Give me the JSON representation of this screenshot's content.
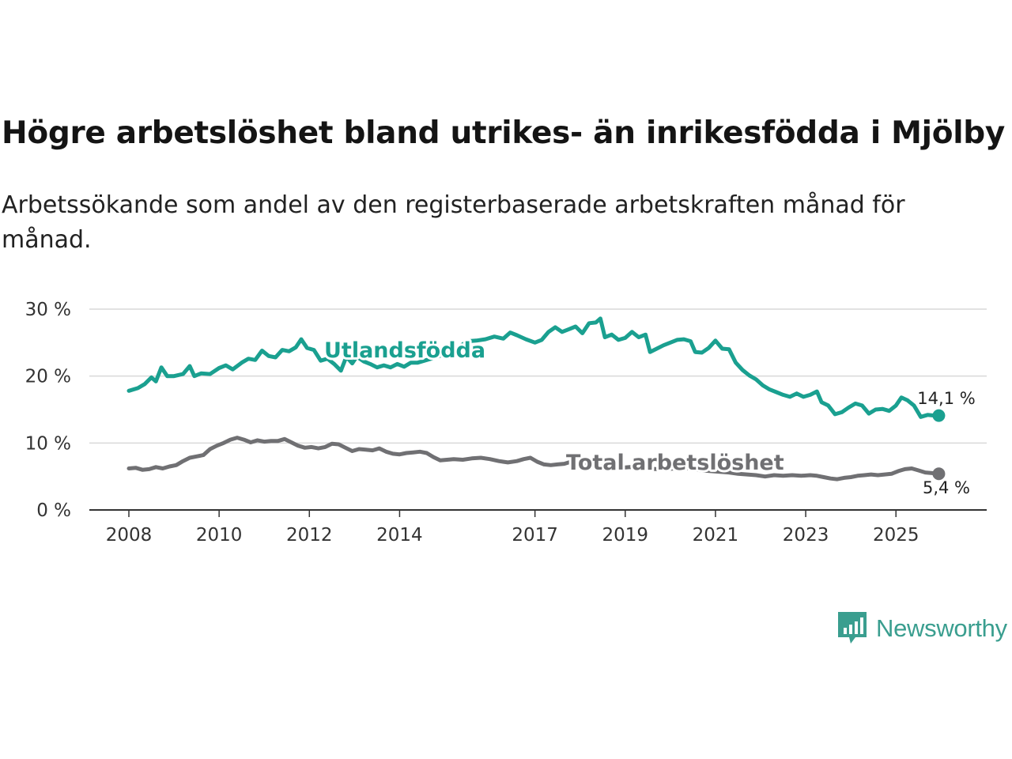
{
  "title": "Högre arbetslöshet bland utrikes- än inrikesfödda i Mjölby",
  "subtitle": "Arbetssökande som andel av den registerbaserade arbetskraften månad för månad.",
  "brand": {
    "name": "Newsworthy",
    "color": "#3a9e8f"
  },
  "chart_data": {
    "type": "line",
    "xlabel": "",
    "ylabel": "",
    "ylim": [
      0,
      30
    ],
    "xlim": [
      2008,
      2026.1
    ],
    "y_ticks": [
      {
        "value": 0,
        "label": "0 %"
      },
      {
        "value": 10,
        "label": "10 %"
      },
      {
        "value": 20,
        "label": "20 %"
      },
      {
        "value": 30,
        "label": "30 %"
      }
    ],
    "x_ticks": [
      {
        "value": 2008,
        "label": "2008"
      },
      {
        "value": 2010,
        "label": "2010"
      },
      {
        "value": 2012,
        "label": "2012"
      },
      {
        "value": 2014,
        "label": "2014"
      },
      {
        "value": 2017,
        "label": "2017"
      },
      {
        "value": 2019,
        "label": "2019"
      },
      {
        "value": 2021,
        "label": "2021"
      },
      {
        "value": 2023,
        "label": "2023"
      },
      {
        "value": 2025,
        "label": "2025"
      }
    ],
    "grid": true,
    "series": [
      {
        "name": "Utlandsfödda",
        "color": "#1aa090",
        "end_label": "14,1 %",
        "points": [
          [
            2008.0,
            17.8
          ],
          [
            2008.2,
            18.2
          ],
          [
            2008.35,
            18.8
          ],
          [
            2008.5,
            19.8
          ],
          [
            2008.6,
            19.2
          ],
          [
            2008.72,
            21.3
          ],
          [
            2008.85,
            20.0
          ],
          [
            2009.0,
            20.0
          ],
          [
            2009.2,
            20.3
          ],
          [
            2009.35,
            21.5
          ],
          [
            2009.45,
            20.0
          ],
          [
            2009.6,
            20.4
          ],
          [
            2009.8,
            20.3
          ],
          [
            2010.0,
            21.2
          ],
          [
            2010.15,
            21.6
          ],
          [
            2010.3,
            21.0
          ],
          [
            2010.5,
            22.0
          ],
          [
            2010.65,
            22.6
          ],
          [
            2010.8,
            22.4
          ],
          [
            2010.95,
            23.8
          ],
          [
            2011.1,
            23.0
          ],
          [
            2011.25,
            22.8
          ],
          [
            2011.4,
            23.9
          ],
          [
            2011.55,
            23.7
          ],
          [
            2011.7,
            24.3
          ],
          [
            2011.82,
            25.5
          ],
          [
            2011.95,
            24.2
          ],
          [
            2012.1,
            23.9
          ],
          [
            2012.25,
            22.3
          ],
          [
            2012.4,
            22.6
          ],
          [
            2012.55,
            21.8
          ],
          [
            2012.7,
            20.8
          ],
          [
            2012.82,
            22.9
          ],
          [
            2012.95,
            21.9
          ],
          [
            2013.05,
            22.9
          ],
          [
            2013.2,
            22.2
          ],
          [
            2013.35,
            21.8
          ],
          [
            2013.5,
            21.3
          ],
          [
            2013.65,
            21.6
          ],
          [
            2013.8,
            21.3
          ],
          [
            2013.95,
            21.8
          ],
          [
            2014.1,
            21.4
          ],
          [
            2014.25,
            22.0
          ],
          [
            2014.4,
            22.0
          ],
          [
            2014.6,
            22.4
          ],
          [
            2014.8,
            22.8
          ],
          [
            2015.0,
            23.3
          ],
          [
            2015.2,
            23.8
          ],
          [
            2015.35,
            24.5
          ],
          [
            2015.5,
            25.2
          ],
          [
            2015.7,
            25.3
          ],
          [
            2015.9,
            25.5
          ],
          [
            2016.1,
            25.9
          ],
          [
            2016.3,
            25.6
          ],
          [
            2016.45,
            26.5
          ],
          [
            2016.6,
            26.1
          ],
          [
            2016.8,
            25.5
          ],
          [
            2017.0,
            25.0
          ],
          [
            2017.15,
            25.4
          ],
          [
            2017.3,
            26.6
          ],
          [
            2017.45,
            27.3
          ],
          [
            2017.6,
            26.6
          ],
          [
            2017.75,
            27.0
          ],
          [
            2017.9,
            27.4
          ],
          [
            2018.05,
            26.4
          ],
          [
            2018.2,
            27.9
          ],
          [
            2018.35,
            28.0
          ],
          [
            2018.45,
            28.6
          ],
          [
            2018.55,
            25.8
          ],
          [
            2018.7,
            26.2
          ],
          [
            2018.85,
            25.4
          ],
          [
            2019.0,
            25.7
          ],
          [
            2019.15,
            26.6
          ],
          [
            2019.3,
            25.8
          ],
          [
            2019.45,
            26.2
          ],
          [
            2019.55,
            23.6
          ],
          [
            2019.7,
            24.1
          ],
          [
            2019.85,
            24.6
          ],
          [
            2020.0,
            25.0
          ],
          [
            2020.15,
            25.4
          ],
          [
            2020.3,
            25.5
          ],
          [
            2020.45,
            25.2
          ],
          [
            2020.55,
            23.6
          ],
          [
            2020.7,
            23.5
          ],
          [
            2020.85,
            24.2
          ],
          [
            2021.0,
            25.3
          ],
          [
            2021.15,
            24.1
          ],
          [
            2021.3,
            24.0
          ],
          [
            2021.45,
            22.0
          ],
          [
            2021.6,
            20.9
          ],
          [
            2021.75,
            20.1
          ],
          [
            2021.9,
            19.5
          ],
          [
            2022.05,
            18.6
          ],
          [
            2022.2,
            18.0
          ],
          [
            2022.35,
            17.6
          ],
          [
            2022.5,
            17.2
          ],
          [
            2022.65,
            16.9
          ],
          [
            2022.8,
            17.4
          ],
          [
            2022.95,
            16.9
          ],
          [
            2023.1,
            17.2
          ],
          [
            2023.25,
            17.7
          ],
          [
            2023.35,
            16.1
          ],
          [
            2023.5,
            15.6
          ],
          [
            2023.65,
            14.3
          ],
          [
            2023.8,
            14.6
          ],
          [
            2023.95,
            15.3
          ],
          [
            2024.1,
            15.9
          ],
          [
            2024.25,
            15.6
          ],
          [
            2024.4,
            14.4
          ],
          [
            2024.55,
            15.0
          ],
          [
            2024.7,
            15.1
          ],
          [
            2024.85,
            14.8
          ],
          [
            2025.0,
            15.6
          ],
          [
            2025.12,
            16.8
          ],
          [
            2025.25,
            16.4
          ],
          [
            2025.4,
            15.6
          ],
          [
            2025.55,
            13.9
          ],
          [
            2025.7,
            14.2
          ],
          [
            2025.85,
            14.1
          ],
          [
            2025.95,
            14.1
          ]
        ]
      },
      {
        "name": "Total arbetslöshet",
        "color": "#707073",
        "end_label": "5,4 %",
        "points": [
          [
            2008.0,
            6.2
          ],
          [
            2008.15,
            6.3
          ],
          [
            2008.3,
            6.0
          ],
          [
            2008.45,
            6.1
          ],
          [
            2008.6,
            6.4
          ],
          [
            2008.75,
            6.2
          ],
          [
            2008.9,
            6.5
          ],
          [
            2009.05,
            6.7
          ],
          [
            2009.2,
            7.3
          ],
          [
            2009.35,
            7.8
          ],
          [
            2009.5,
            8.0
          ],
          [
            2009.65,
            8.2
          ],
          [
            2009.8,
            9.1
          ],
          [
            2009.95,
            9.6
          ],
          [
            2010.1,
            10.0
          ],
          [
            2010.25,
            10.5
          ],
          [
            2010.4,
            10.8
          ],
          [
            2010.55,
            10.5
          ],
          [
            2010.7,
            10.1
          ],
          [
            2010.85,
            10.4
          ],
          [
            2011.0,
            10.2
          ],
          [
            2011.15,
            10.3
          ],
          [
            2011.3,
            10.3
          ],
          [
            2011.45,
            10.6
          ],
          [
            2011.6,
            10.1
          ],
          [
            2011.75,
            9.6
          ],
          [
            2011.9,
            9.3
          ],
          [
            2012.05,
            9.4
          ],
          [
            2012.2,
            9.2
          ],
          [
            2012.35,
            9.4
          ],
          [
            2012.5,
            9.9
          ],
          [
            2012.65,
            9.8
          ],
          [
            2012.8,
            9.3
          ],
          [
            2012.95,
            8.8
          ],
          [
            2013.1,
            9.1
          ],
          [
            2013.25,
            9.0
          ],
          [
            2013.4,
            8.9
          ],
          [
            2013.55,
            9.2
          ],
          [
            2013.7,
            8.7
          ],
          [
            2013.85,
            8.4
          ],
          [
            2014.0,
            8.3
          ],
          [
            2014.15,
            8.5
          ],
          [
            2014.3,
            8.6
          ],
          [
            2014.45,
            8.7
          ],
          [
            2014.6,
            8.5
          ],
          [
            2014.75,
            7.9
          ],
          [
            2014.9,
            7.4
          ],
          [
            2015.05,
            7.5
          ],
          [
            2015.2,
            7.6
          ],
          [
            2015.4,
            7.5
          ],
          [
            2015.6,
            7.7
          ],
          [
            2015.8,
            7.8
          ],
          [
            2016.0,
            7.6
          ],
          [
            2016.2,
            7.3
          ],
          [
            2016.4,
            7.1
          ],
          [
            2016.6,
            7.3
          ],
          [
            2016.75,
            7.6
          ],
          [
            2016.9,
            7.8
          ],
          [
            2017.05,
            7.2
          ],
          [
            2017.2,
            6.8
          ],
          [
            2017.35,
            6.7
          ],
          [
            2017.5,
            6.8
          ],
          [
            2017.65,
            6.9
          ],
          [
            2017.8,
            7.2
          ],
          [
            2017.95,
            6.9
          ],
          [
            2018.1,
            6.8
          ],
          [
            2018.3,
            6.5
          ],
          [
            2018.5,
            6.5
          ],
          [
            2018.7,
            6.4
          ],
          [
            2018.9,
            6.3
          ],
          [
            2019.1,
            6.4
          ],
          [
            2019.3,
            6.3
          ],
          [
            2019.5,
            6.2
          ],
          [
            2019.7,
            6.1
          ],
          [
            2019.9,
            6.1
          ],
          [
            2020.1,
            6.2
          ],
          [
            2020.3,
            6.3
          ],
          [
            2020.5,
            6.1
          ],
          [
            2020.7,
            5.9
          ],
          [
            2020.9,
            5.8
          ],
          [
            2021.1,
            5.7
          ],
          [
            2021.3,
            5.6
          ],
          [
            2021.5,
            5.4
          ],
          [
            2021.7,
            5.3
          ],
          [
            2021.9,
            5.2
          ],
          [
            2022.1,
            5.0
          ],
          [
            2022.3,
            5.2
          ],
          [
            2022.5,
            5.1
          ],
          [
            2022.7,
            5.2
          ],
          [
            2022.9,
            5.1
          ],
          [
            2023.1,
            5.2
          ],
          [
            2023.25,
            5.1
          ],
          [
            2023.4,
            4.9
          ],
          [
            2023.55,
            4.7
          ],
          [
            2023.7,
            4.6
          ],
          [
            2023.85,
            4.8
          ],
          [
            2024.0,
            4.9
          ],
          [
            2024.15,
            5.1
          ],
          [
            2024.3,
            5.2
          ],
          [
            2024.45,
            5.3
          ],
          [
            2024.6,
            5.2
          ],
          [
            2024.75,
            5.3
          ],
          [
            2024.9,
            5.4
          ],
          [
            2025.05,
            5.8
          ],
          [
            2025.2,
            6.1
          ],
          [
            2025.35,
            6.2
          ],
          [
            2025.5,
            5.9
          ],
          [
            2025.65,
            5.6
          ],
          [
            2025.8,
            5.5
          ],
          [
            2025.95,
            5.4
          ]
        ]
      }
    ]
  }
}
